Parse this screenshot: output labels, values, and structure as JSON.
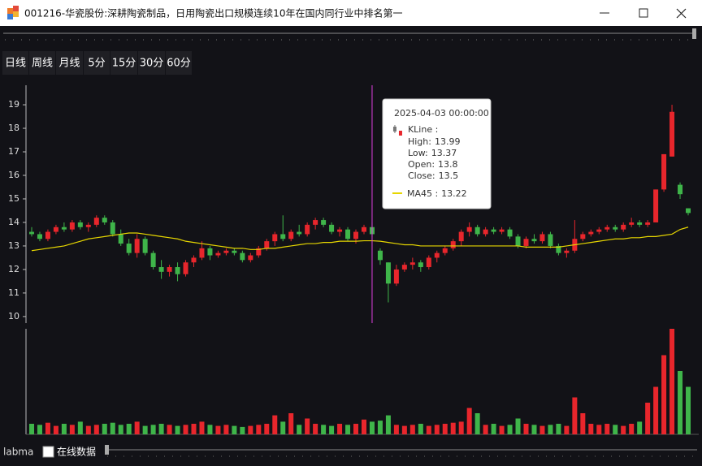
{
  "window": {
    "title": "001216-华瓷股份:深耕陶瓷制品，日用陶瓷出口规模连续10年在国内同行业中排名第一"
  },
  "toolbar": {
    "periods": [
      "日线",
      "周线",
      "月线",
      "5分",
      "15分",
      "30分",
      "60分"
    ]
  },
  "footer": {
    "label": "labma",
    "checkbox": "在线数据"
  },
  "chart_data": {
    "type": "candlestick",
    "categories": [
      null,
      null,
      null,
      null,
      null,
      null,
      null,
      null,
      null,
      null,
      null,
      null,
      null,
      null,
      null,
      null,
      null,
      null,
      null,
      null,
      null,
      null,
      null,
      null,
      null,
      null,
      null,
      null,
      null,
      null,
      null,
      null,
      null,
      null,
      null,
      null,
      null,
      null,
      null,
      null,
      null,
      null,
      "2025-04-03 00:00:00",
      null,
      null,
      null,
      null,
      null,
      null,
      null,
      null,
      null,
      null,
      null,
      null,
      null,
      null,
      null,
      null,
      null,
      null,
      null,
      null,
      null,
      null,
      null,
      null,
      null,
      null,
      null,
      null,
      null,
      null,
      null,
      null,
      null,
      null,
      null,
      null,
      null,
      null,
      null
    ],
    "open": [
      13.6,
      13.5,
      13.3,
      13.6,
      13.8,
      13.7,
      14.0,
      13.8,
      13.9,
      14.2,
      14.0,
      13.5,
      13.1,
      12.7,
      13.3,
      12.7,
      12.1,
      11.9,
      12.1,
      11.8,
      12.3,
      12.5,
      12.9,
      12.6,
      12.7,
      12.8,
      12.7,
      12.4,
      12.6,
      12.9,
      13.2,
      13.5,
      13.3,
      13.6,
      13.5,
      13.9,
      14.1,
      13.9,
      13.6,
      13.7,
      13.3,
      13.6,
      13.8,
      12.8,
      12.3,
      11.4,
      12.0,
      12.2,
      12.3,
      12.1,
      12.5,
      12.7,
      12.9,
      13.2,
      13.6,
      13.8,
      13.5,
      13.7,
      13.6,
      13.7,
      13.4,
      13.0,
      13.3,
      13.2,
      13.5,
      13.0,
      12.7,
      12.8,
      13.3,
      13.5,
      13.6,
      13.7,
      13.8,
      13.7,
      13.9,
      14.0,
      13.9,
      14.0,
      15.4,
      16.8,
      15.6,
      14.6
    ],
    "high": [
      13.8,
      13.6,
      13.7,
      13.9,
      14.0,
      14.1,
      14.1,
      14.0,
      14.3,
      14.3,
      14.1,
      13.7,
      13.3,
      13.5,
      13.4,
      12.8,
      12.4,
      12.2,
      12.3,
      12.4,
      12.6,
      13.2,
      13.0,
      12.8,
      12.9,
      12.9,
      12.8,
      12.7,
      13.0,
      13.3,
      13.6,
      14.3,
      13.7,
      13.9,
      14.0,
      14.2,
      14.2,
      14.0,
      13.8,
      13.8,
      13.7,
      13.9,
      13.99,
      12.9,
      12.3,
      12.2,
      12.3,
      12.5,
      12.4,
      12.6,
      12.8,
      13.0,
      13.3,
      13.7,
      14.0,
      13.9,
      13.8,
      13.8,
      13.8,
      13.8,
      13.5,
      13.4,
      13.5,
      13.6,
      13.6,
      13.1,
      12.9,
      14.1,
      13.6,
      13.7,
      13.8,
      13.9,
      13.9,
      14.0,
      14.2,
      14.1,
      14.1,
      15.4,
      16.9,
      19.0,
      15.7,
      14.6
    ],
    "low": [
      13.4,
      13.2,
      13.2,
      13.5,
      13.6,
      13.6,
      13.7,
      13.6,
      13.8,
      13.9,
      13.4,
      13.0,
      12.6,
      12.5,
      12.6,
      12.0,
      11.6,
      11.7,
      11.5,
      11.7,
      12.1,
      12.4,
      12.4,
      12.5,
      12.6,
      12.6,
      12.3,
      12.3,
      12.5,
      12.8,
      13.0,
      13.2,
      13.2,
      13.4,
      13.4,
      13.7,
      13.8,
      13.5,
      13.4,
      13.2,
      13.1,
      13.5,
      13.37,
      12.2,
      10.6,
      11.3,
      11.9,
      12.0,
      11.9,
      12.0,
      12.3,
      12.6,
      12.8,
      13.0,
      13.4,
      13.4,
      13.4,
      13.5,
      13.5,
      13.3,
      12.9,
      12.9,
      13.1,
      13.1,
      12.9,
      12.6,
      12.5,
      12.7,
      13.2,
      13.4,
      13.5,
      13.6,
      13.6,
      13.6,
      13.8,
      13.8,
      13.8,
      14.0,
      15.3,
      16.8,
      15.0,
      14.3
    ],
    "close": [
      13.5,
      13.3,
      13.6,
      13.8,
      13.7,
      14.0,
      13.8,
      13.9,
      14.2,
      14.0,
      13.5,
      13.1,
      12.7,
      13.3,
      12.7,
      12.1,
      11.9,
      12.1,
      11.8,
      12.3,
      12.5,
      12.9,
      12.6,
      12.7,
      12.8,
      12.7,
      12.4,
      12.6,
      12.9,
      13.2,
      13.5,
      13.3,
      13.6,
      13.5,
      13.9,
      14.1,
      13.9,
      13.6,
      13.7,
      13.3,
      13.6,
      13.8,
      13.5,
      12.4,
      11.4,
      12.0,
      12.2,
      12.3,
      12.1,
      12.5,
      12.7,
      12.9,
      13.2,
      13.6,
      13.8,
      13.5,
      13.7,
      13.6,
      13.7,
      13.4,
      13.0,
      13.3,
      13.2,
      13.5,
      13.0,
      12.7,
      12.8,
      13.3,
      13.5,
      13.6,
      13.7,
      13.8,
      13.7,
      13.9,
      14.0,
      13.9,
      14.0,
      15.4,
      16.9,
      18.7,
      15.2,
      14.4
    ],
    "up_color": "#e8262c",
    "down_color": "#3fb54a",
    "ma": {
      "name": "MA45",
      "color": "#e6d600",
      "values": [
        12.8,
        12.85,
        12.9,
        12.95,
        13.0,
        13.1,
        13.2,
        13.3,
        13.35,
        13.4,
        13.45,
        13.5,
        13.55,
        13.55,
        13.5,
        13.45,
        13.4,
        13.35,
        13.3,
        13.2,
        13.15,
        13.1,
        13.05,
        13.0,
        12.95,
        12.9,
        12.9,
        12.85,
        12.85,
        12.9,
        12.9,
        12.95,
        13.0,
        13.05,
        13.1,
        13.1,
        13.15,
        13.15,
        13.2,
        13.2,
        13.2,
        13.22,
        13.22,
        13.2,
        13.15,
        13.1,
        13.05,
        13.05,
        13.0,
        13.0,
        13.0,
        13.0,
        13.0,
        13.0,
        13.0,
        13.0,
        13.0,
        13.0,
        13.0,
        13.0,
        13.0,
        12.95,
        12.95,
        12.95,
        12.95,
        12.95,
        13.0,
        13.05,
        13.1,
        13.15,
        13.2,
        13.25,
        13.3,
        13.3,
        13.35,
        13.35,
        13.4,
        13.4,
        13.45,
        13.5,
        13.7,
        13.8
      ]
    },
    "volume": {
      "ylim": [
        0,
        100
      ],
      "values": [
        10,
        9,
        11,
        8,
        10,
        9,
        12,
        8,
        9,
        10,
        11,
        9,
        10,
        12,
        8,
        9,
        10,
        9,
        8,
        9,
        10,
        12,
        9,
        8,
        9,
        8,
        7,
        8,
        9,
        10,
        18,
        12,
        20,
        9,
        15,
        10,
        9,
        8,
        10,
        9,
        10,
        14,
        12,
        13,
        18,
        9,
        8,
        9,
        10,
        8,
        9,
        10,
        11,
        12,
        25,
        20,
        9,
        10,
        8,
        9,
        15,
        10,
        9,
        8,
        9,
        10,
        8,
        35,
        20,
        10,
        9,
        10,
        9,
        8,
        10,
        12,
        30,
        45,
        75,
        100,
        60,
        45
      ]
    },
    "ylim": [
      9.72,
      19.83
    ],
    "yticks": [
      10,
      11,
      12,
      13,
      14,
      15,
      16,
      17,
      18,
      19
    ],
    "tooltip": {
      "kline": "KLine :",
      "high": "High:",
      "low": "Low:",
      "open": "Open:",
      "close": "Close:",
      "ma": "MA45 :"
    }
  }
}
